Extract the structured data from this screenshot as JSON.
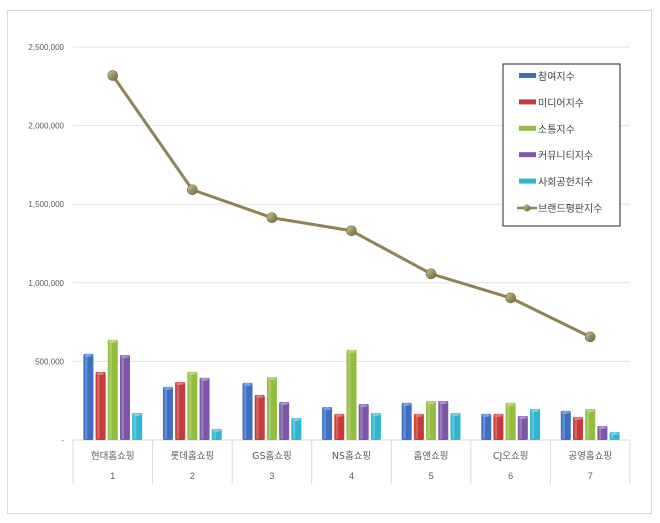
{
  "chart_data": {
    "type": "bar",
    "title": "",
    "xlabel": "",
    "ylabel": "",
    "ylim": [
      0,
      2500000
    ],
    "yticks": [
      0,
      500000,
      1000000,
      1500000,
      2000000,
      2500000
    ],
    "ytick_labels": [
      "-",
      "500,000",
      "1,000,000",
      "1,500,000",
      "2,000,000",
      "2,500,000"
    ],
    "grid": true,
    "legend_position": "upper right",
    "categories": [
      "현대홈쇼핑",
      "롯데홈쇼핑",
      "GS홈쇼핑",
      "NS홈쇼핑",
      "홈앤쇼핑",
      "CJ오쇼핑",
      "공영홈쇼핑"
    ],
    "category_ranks": [
      "1",
      "2",
      "3",
      "4",
      "5",
      "6",
      "7"
    ],
    "series": [
      {
        "name": "참여지수",
        "type": "bar",
        "color": "#3a6fc4",
        "values": [
          548000,
          338000,
          363000,
          210000,
          236000,
          166000,
          185000
        ]
      },
      {
        "name": "미디어지수",
        "type": "bar",
        "color": "#c8393a",
        "values": [
          433000,
          369000,
          287000,
          166000,
          166000,
          166000,
          146000
        ]
      },
      {
        "name": "소통지수",
        "type": "bar",
        "color": "#93bd3e",
        "values": [
          637000,
          433000,
          401000,
          573000,
          248000,
          236000,
          197000
        ]
      },
      {
        "name": "커뮤니티지수",
        "type": "bar",
        "color": "#7d56a8",
        "values": [
          541000,
          395000,
          242000,
          229000,
          248000,
          153000,
          89000
        ]
      },
      {
        "name": "사회공헌지수",
        "type": "bar",
        "color": "#2fb5cf",
        "values": [
          172000,
          70000,
          140000,
          172000,
          172000,
          197000,
          51000
        ]
      },
      {
        "name": "브랜드평판지수",
        "type": "line",
        "color": "#8c8456",
        "values": [
          2318000,
          1592000,
          1414000,
          1331000,
          1057000,
          904000,
          656000
        ]
      }
    ]
  },
  "legend": {
    "items": [
      {
        "label": "참여지수",
        "color": "#3a6fc4",
        "kind": "bar"
      },
      {
        "label": "미디어지수",
        "color": "#c8393a",
        "kind": "bar"
      },
      {
        "label": "소통지수",
        "color": "#93bd3e",
        "kind": "bar"
      },
      {
        "label": "커뮤니티지수",
        "color": "#7d56a8",
        "kind": "bar"
      },
      {
        "label": "사회공헌지수",
        "color": "#2fb5cf",
        "kind": "bar"
      },
      {
        "label": "브랜드평판지수",
        "color": "#8c8456",
        "kind": "line"
      }
    ]
  }
}
